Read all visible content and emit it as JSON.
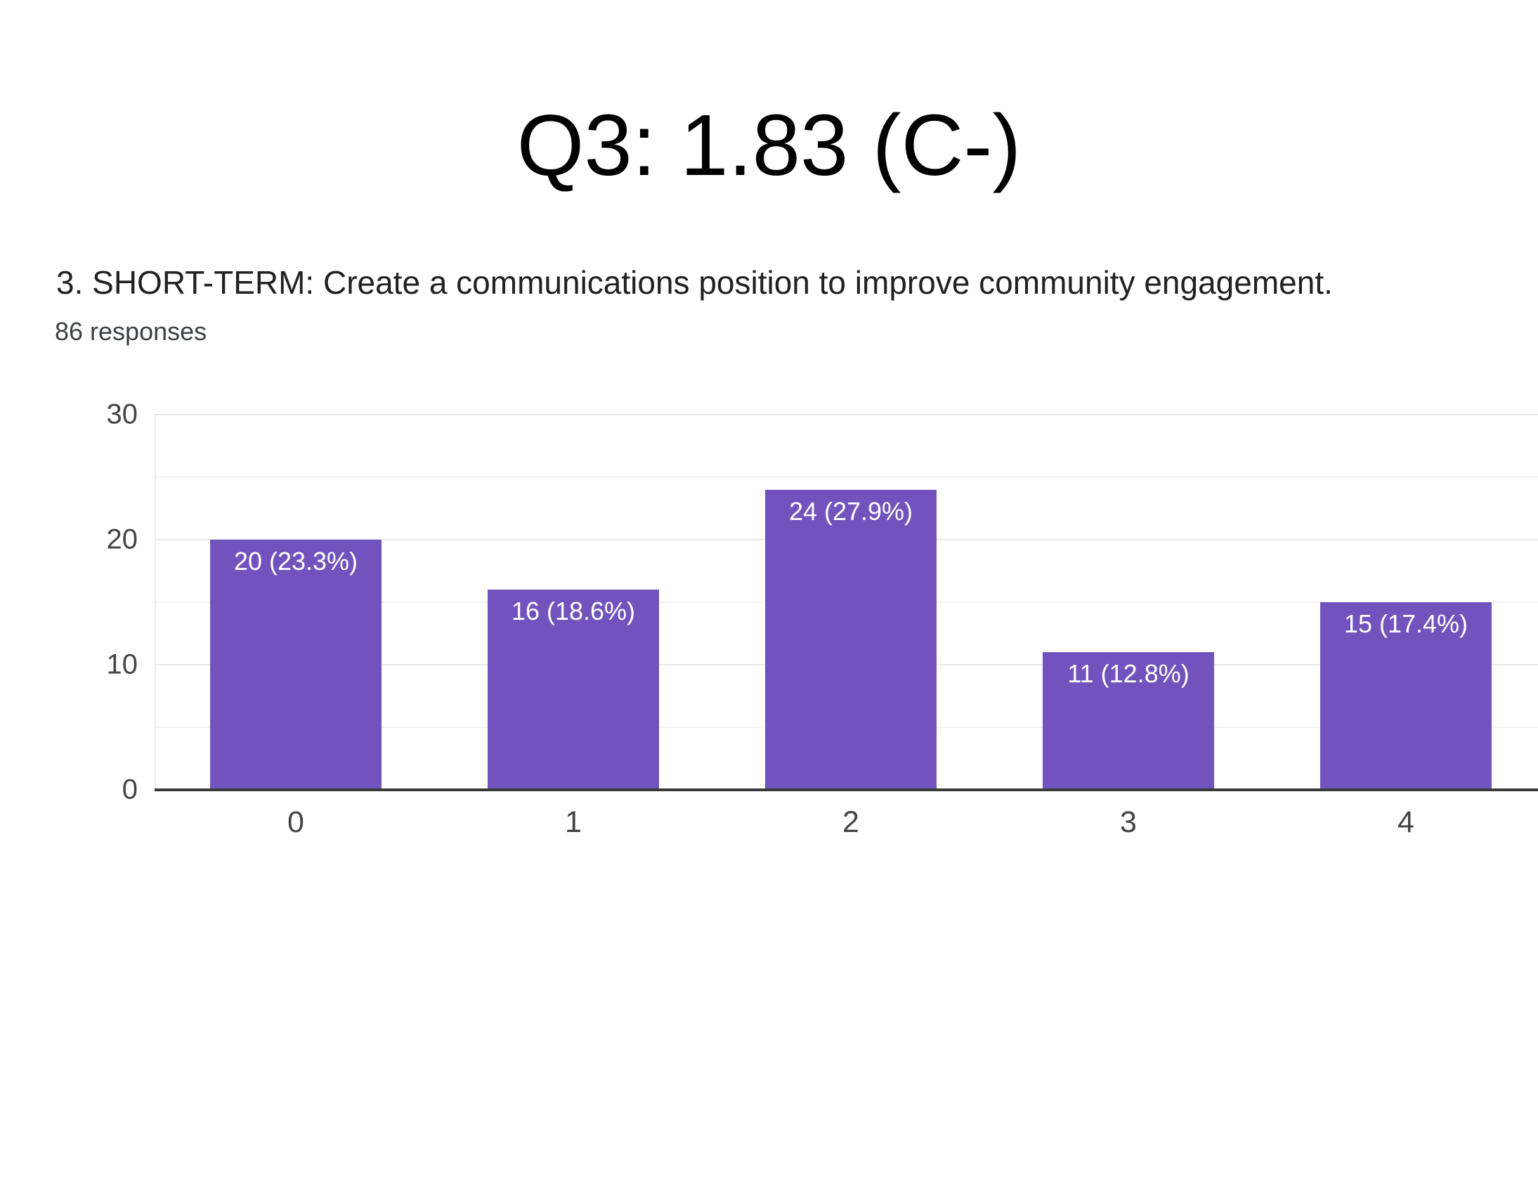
{
  "slide": {
    "title": "Q3: 1.83 (C-)"
  },
  "question": {
    "text": "3. SHORT-TERM: Create a communications position to improve community engagement.",
    "responses_label": "86 responses"
  },
  "chart_data": {
    "type": "bar",
    "title": "",
    "xlabel": "",
    "ylabel": "",
    "categories": [
      "0",
      "1",
      "2",
      "3",
      "4"
    ],
    "values": [
      20,
      16,
      24,
      11,
      15
    ],
    "bar_labels": [
      "20 (23.3%)",
      "16 (18.6%)",
      "24 (27.9%)",
      "11 (12.8%)",
      "15 (17.4%)"
    ],
    "total_responses": 86,
    "ylim": [
      0,
      30
    ],
    "yticks": [
      0,
      10,
      20,
      30
    ],
    "minor_gridline_step": 5,
    "grid": true,
    "legend_position": "none",
    "colors": {
      "bar": "#7253bd",
      "axis": "#3a3a3a",
      "major_gridline": "#e8e8e8",
      "minor_gridline": "#f3f3f3",
      "tick_text": "#444444",
      "bar_label_text": "#ffffff"
    }
  }
}
